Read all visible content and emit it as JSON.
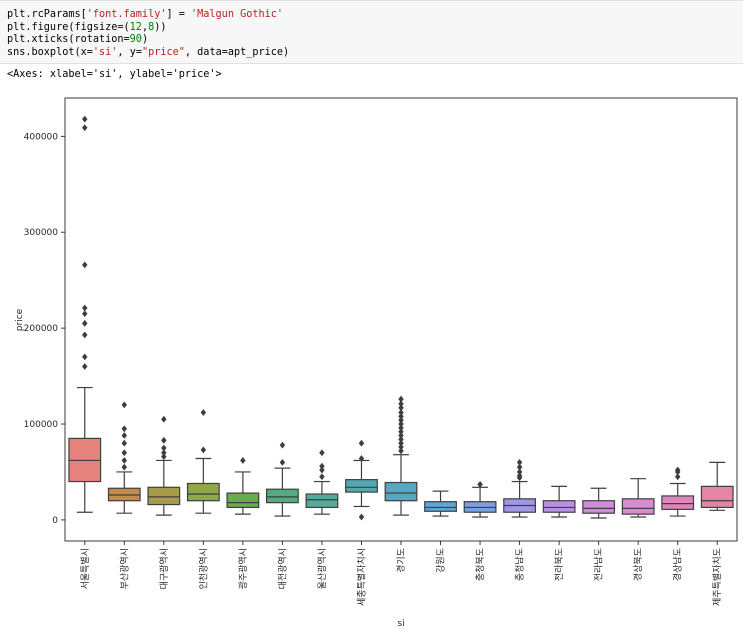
{
  "cell": {
    "code_lines": [
      [
        {
          "t": "plt.rcParams["
        },
        {
          "t": "'font.family'",
          "c": "str"
        },
        {
          "t": "] = "
        },
        {
          "t": "'Malgun Gothic'",
          "c": "str"
        }
      ],
      [
        {
          "t": "plt.figure(figsize=("
        },
        {
          "t": "12",
          "c": "num"
        },
        {
          "t": ","
        },
        {
          "t": "8",
          "c": "num"
        },
        {
          "t": "))"
        }
      ],
      [
        {
          "t": "plt.xticks(rotation="
        },
        {
          "t": "90",
          "c": "num"
        },
        {
          "t": ")"
        }
      ],
      [
        {
          "t": "sns.boxplot(x="
        },
        {
          "t": "'si'",
          "c": "str"
        },
        {
          "t": ", y="
        },
        {
          "t": "\"price\"",
          "c": "str"
        },
        {
          "t": ", data=apt_price)"
        }
      ]
    ],
    "output_text": "<Axes: xlabel='si', ylabel='price'>"
  },
  "chart_data": {
    "type": "box",
    "xlabel": "si",
    "ylabel": "price",
    "ylim": [
      -22000,
      440000
    ],
    "yticks": [
      0,
      100000,
      200000,
      300000,
      400000
    ],
    "ytick_labels": [
      "0",
      "100000",
      "200000",
      "300000",
      "400000"
    ],
    "grid": false,
    "legend": "none",
    "categories": [
      {
        "name": "서울특별시",
        "color": "#e4827b",
        "min": 8000,
        "q1": 40000,
        "median": 62000,
        "q3": 85000,
        "max": 138000,
        "outliers": [
          160000,
          170000,
          193000,
          205000,
          215000,
          221000,
          266000,
          409000,
          418000
        ]
      },
      {
        "name": "부산광역시",
        "color": "#c38b4e",
        "min": 7000,
        "q1": 20000,
        "median": 26000,
        "q3": 33000,
        "max": 50000,
        "outliers": [
          55000,
          62000,
          70000,
          80000,
          88000,
          95000,
          120000
        ]
      },
      {
        "name": "대구광역시",
        "color": "#a79a4a",
        "min": 5000,
        "q1": 16000,
        "median": 24000,
        "q3": 34000,
        "max": 62000,
        "outliers": [
          66000,
          70000,
          75000,
          83000,
          105000
        ]
      },
      {
        "name": "인천광역시",
        "color": "#8fa848",
        "min": 7000,
        "q1": 20000,
        "median": 27000,
        "q3": 38000,
        "max": 64000,
        "outliers": [
          73000,
          112000
        ]
      },
      {
        "name": "광주광역시",
        "color": "#6aac4d",
        "min": 6000,
        "q1": 13000,
        "median": 18000,
        "q3": 28000,
        "max": 50000,
        "outliers": [
          62000
        ]
      },
      {
        "name": "대전광역시",
        "color": "#52ac81",
        "min": 4000,
        "q1": 18000,
        "median": 24000,
        "q3": 32000,
        "max": 54000,
        "outliers": [
          60000,
          78000
        ]
      },
      {
        "name": "울산광역시",
        "color": "#56a99b",
        "min": 6000,
        "q1": 13000,
        "median": 21000,
        "q3": 27000,
        "max": 40000,
        "outliers": [
          45000,
          52000,
          56000,
          70000
        ]
      },
      {
        "name": "세종특별자치시",
        "color": "#53a8b0",
        "min": 14000,
        "q1": 29000,
        "median": 34000,
        "q3": 42000,
        "max": 62000,
        "outliers": [
          3000,
          64000,
          80000
        ]
      },
      {
        "name": "경기도",
        "color": "#58a6c1",
        "min": 5000,
        "q1": 20000,
        "median": 28000,
        "q3": 39000,
        "max": 68000,
        "outliers": [
          72000,
          76000,
          80000,
          84000,
          88000,
          92000,
          96000,
          100000,
          104000,
          108000,
          112000,
          117000,
          121000,
          126000
        ]
      },
      {
        "name": "강원도",
        "color": "#5ea4d4",
        "min": 4000,
        "q1": 9000,
        "median": 13000,
        "q3": 19000,
        "max": 30000,
        "outliers": []
      },
      {
        "name": "충청북도",
        "color": "#7f9ee2",
        "min": 3000,
        "q1": 8000,
        "median": 13000,
        "q3": 19000,
        "max": 34000,
        "outliers": [
          37000
        ]
      },
      {
        "name": "충청남도",
        "color": "#9f97e3",
        "min": 3000,
        "q1": 8000,
        "median": 15000,
        "q3": 22000,
        "max": 40000,
        "outliers": [
          44000,
          46000,
          50000,
          55000,
          60000
        ]
      },
      {
        "name": "전라북도",
        "color": "#bb8fe2",
        "min": 3000,
        "q1": 8000,
        "median": 13000,
        "q3": 20000,
        "max": 35000,
        "outliers": []
      },
      {
        "name": "전라남도",
        "color": "#d18add",
        "min": 2000,
        "q1": 7000,
        "median": 12000,
        "q3": 20000,
        "max": 33000,
        "outliers": []
      },
      {
        "name": "경상북도",
        "color": "#d98bcf",
        "min": 3000,
        "q1": 6000,
        "median": 12000,
        "q3": 22000,
        "max": 43000,
        "outliers": []
      },
      {
        "name": "경상남도",
        "color": "#e085bc",
        "min": 4000,
        "q1": 11000,
        "median": 17000,
        "q3": 25000,
        "max": 38000,
        "outliers": [
          45000,
          50000,
          52000
        ]
      },
      {
        "name": "제주특별자치도",
        "color": "#e486a3",
        "min": 10000,
        "q1": 13000,
        "median": 20000,
        "q3": 35000,
        "max": 60000,
        "outliers": []
      }
    ]
  }
}
